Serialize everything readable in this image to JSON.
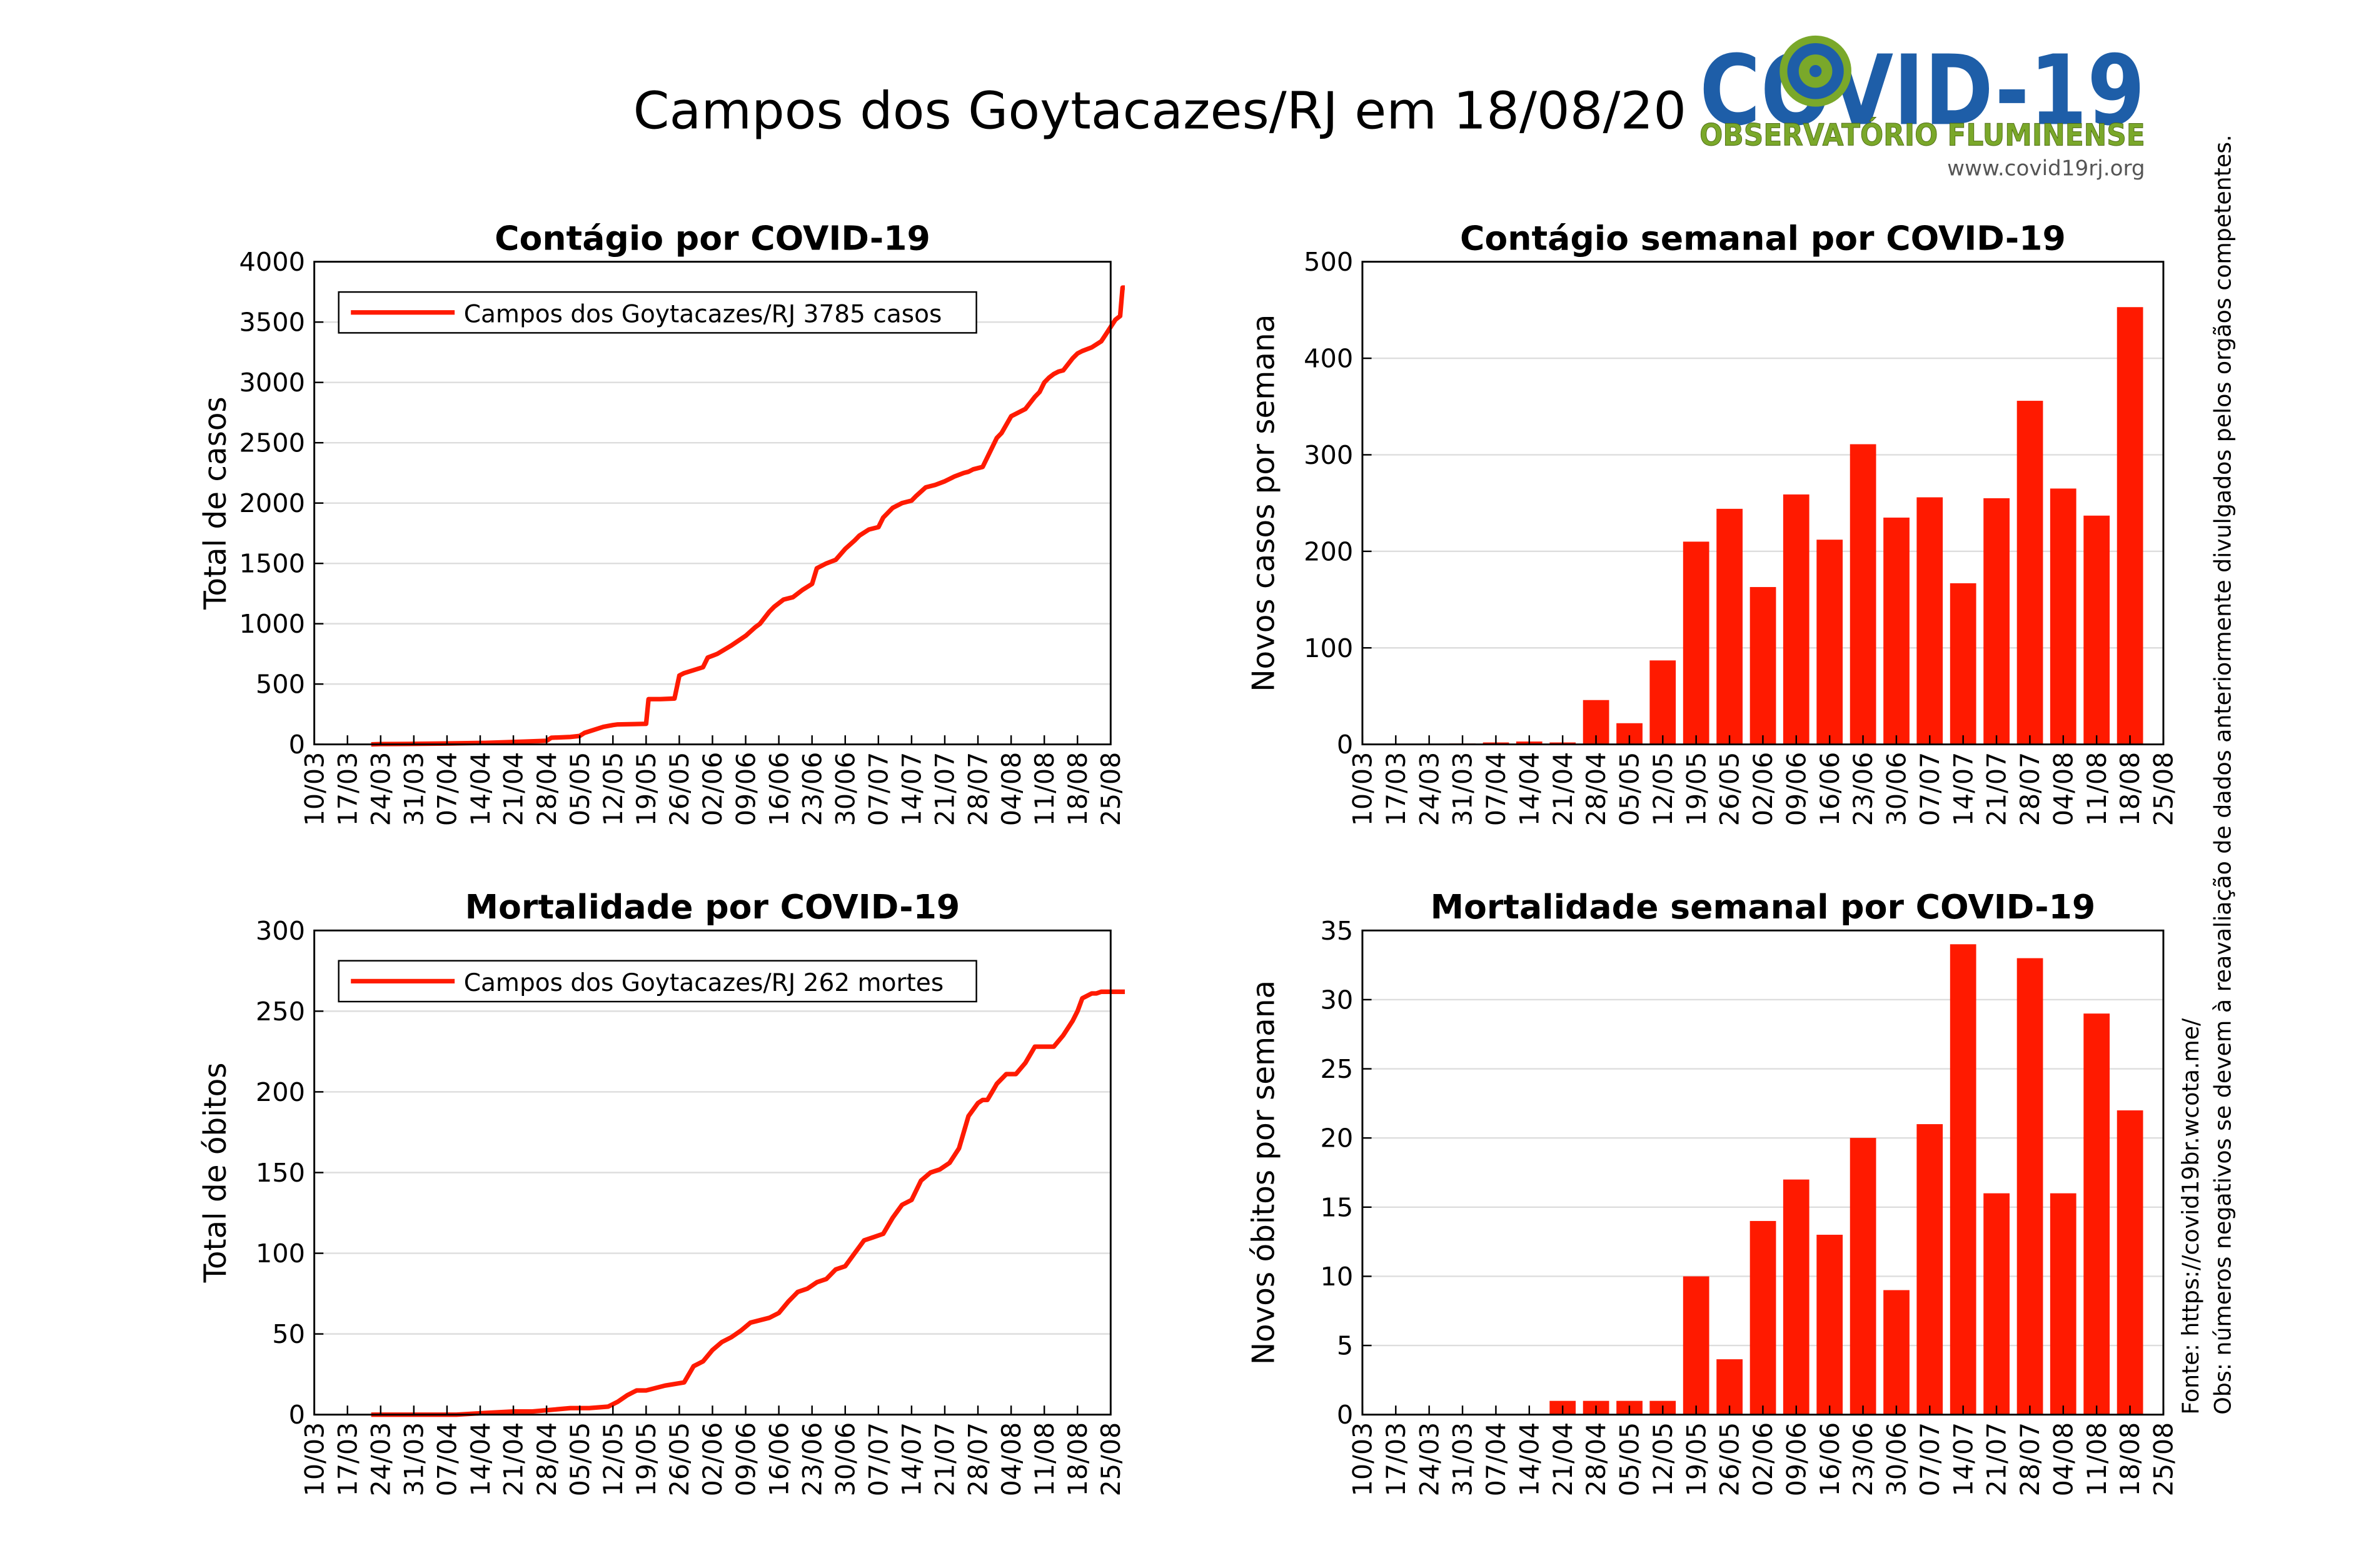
{
  "page": {
    "title": "Campos dos Goytacazes/RJ em 18/08/20"
  },
  "logo": {
    "text_main": "COVID-19",
    "subtitle": "OBSERVATÓRIO FLUMINENSE",
    "url": "www.covid19rj.org",
    "colors": {
      "blue": "#1e5ea8",
      "green": "#7aa82a",
      "gray": "#555555"
    }
  },
  "side_notes": {
    "obs": "Obs: números negativos se devem à reavaliação de dados anteriormente divulgados pelos orgãos competentes.",
    "source": "Fonte: https://covid19br.wcota.me/"
  },
  "colors": {
    "series": "#ff1a00",
    "axis": "#000000",
    "grid": "#dddddd"
  },
  "chart_data": [
    {
      "id": "cases_cum",
      "type": "line",
      "title": "Contágio por COVID-19",
      "xlabel": "",
      "ylabel": "Total de casos",
      "ylim": [
        0,
        4000
      ],
      "yticks": [
        0,
        500,
        1000,
        1500,
        2000,
        2500,
        3000,
        3500,
        4000
      ],
      "xticks": [
        "10/03",
        "17/03",
        "24/03",
        "31/03",
        "07/04",
        "14/04",
        "21/04",
        "28/04",
        "05/05",
        "12/05",
        "19/05",
        "26/05",
        "02/06",
        "09/06",
        "16/06",
        "23/06",
        "30/06",
        "07/07",
        "14/07",
        "21/07",
        "28/07",
        "04/08",
        "11/08",
        "18/08",
        "25/08"
      ],
      "grid": true,
      "legend": {
        "position": "top-left",
        "label": "Campos dos Goytacazes/RJ  3785 casos"
      },
      "series": [
        {
          "name": "Campos dos Goytacazes/RJ  3785 casos",
          "x": [
            12,
            14,
            20,
            28,
            36,
            44,
            49,
            50,
            54,
            56,
            57,
            61,
            63,
            64,
            70,
            70.5,
            73,
            76,
            77,
            78,
            82,
            83,
            85,
            88,
            91,
            93,
            94,
            96,
            97,
            99,
            101,
            103,
            105,
            106,
            108,
            110,
            112,
            114,
            115,
            117,
            119,
            120,
            122,
            124,
            126,
            127,
            129,
            131,
            133,
            135,
            137,
            138,
            139,
            141,
            143,
            144,
            145,
            147,
            149,
            150,
            151,
            152,
            153,
            154,
            155,
            156,
            157,
            158,
            160,
            161,
            162,
            163,
            164,
            166,
            167,
            168,
            169,
            170,
            170.5,
            171
          ],
          "y": [
            0,
            2,
            4,
            8,
            12,
            22,
            30,
            55,
            62,
            70,
            95,
            145,
            160,
            165,
            170,
            375,
            375,
            380,
            570,
            590,
            640,
            720,
            750,
            820,
            900,
            970,
            1000,
            1100,
            1140,
            1200,
            1220,
            1280,
            1330,
            1460,
            1500,
            1530,
            1620,
            1690,
            1730,
            1780,
            1800,
            1880,
            1960,
            2000,
            2020,
            2060,
            2130,
            2150,
            2180,
            2220,
            2250,
            2260,
            2280,
            2300,
            2460,
            2540,
            2580,
            2720,
            2760,
            2780,
            2830,
            2880,
            2920,
            3000,
            3040,
            3070,
            3090,
            3100,
            3200,
            3240,
            3260,
            3275,
            3290,
            3340,
            3400,
            3460,
            3520,
            3550,
            3785,
            3785
          ]
        }
      ]
    },
    {
      "id": "cases_weekly",
      "type": "bar",
      "title": "Contágio semanal por COVID-19",
      "xlabel": "",
      "ylabel": "Novos casos por semana",
      "ylim": [
        0,
        500
      ],
      "yticks": [
        0,
        100,
        200,
        300,
        400,
        500
      ],
      "xticks": [
        "10/03",
        "17/03",
        "24/03",
        "31/03",
        "07/04",
        "14/04",
        "21/04",
        "28/04",
        "05/05",
        "12/05",
        "19/05",
        "26/05",
        "02/06",
        "09/06",
        "16/06",
        "23/06",
        "30/06",
        "07/07",
        "14/07",
        "21/07",
        "28/07",
        "04/08",
        "11/08",
        "18/08",
        "25/08"
      ],
      "grid": true,
      "categories": [
        "17/03",
        "24/03",
        "31/03",
        "07/04",
        "14/04",
        "21/04",
        "28/04",
        "05/05",
        "12/05",
        "19/05",
        "26/05",
        "02/06",
        "09/06",
        "16/06",
        "23/06",
        "30/06",
        "07/07",
        "14/07",
        "21/07",
        "28/07",
        "04/08",
        "11/08",
        "18/08"
      ],
      "values": [
        0,
        0,
        1,
        2,
        3,
        2,
        46,
        22,
        87,
        210,
        244,
        163,
        259,
        212,
        311,
        235,
        256,
        167,
        255,
        356,
        265,
        237,
        453
      ]
    },
    {
      "id": "deaths_cum",
      "type": "line",
      "title": "Mortalidade por COVID-19",
      "xlabel": "",
      "ylabel": "Total de óbitos",
      "ylim": [
        0,
        300
      ],
      "yticks": [
        0,
        50,
        100,
        150,
        200,
        250,
        300
      ],
      "xticks": [
        "10/03",
        "17/03",
        "24/03",
        "31/03",
        "07/04",
        "14/04",
        "21/04",
        "28/04",
        "05/05",
        "12/05",
        "19/05",
        "26/05",
        "02/06",
        "09/06",
        "16/06",
        "23/06",
        "30/06",
        "07/07",
        "14/07",
        "21/07",
        "28/07",
        "04/08",
        "11/08",
        "18/08",
        "25/08"
      ],
      "grid": true,
      "legend": {
        "position": "top-left",
        "label": "Campos dos Goytacazes/RJ  262 mortes"
      },
      "series": [
        {
          "name": "Campos dos Goytacazes/RJ  262 mortes",
          "x": [
            12,
            30,
            36,
            42,
            46,
            50,
            54,
            58,
            62,
            64,
            66,
            68,
            70,
            74,
            78,
            80,
            82,
            84,
            86,
            88,
            90,
            92,
            96,
            98,
            100,
            102,
            104,
            106,
            108,
            110,
            112,
            114,
            116,
            118,
            120,
            122,
            124,
            126,
            128,
            130,
            132,
            134,
            136,
            138,
            140,
            141,
            142,
            143,
            144,
            146,
            148,
            150,
            152,
            154,
            156,
            158,
            160,
            161,
            162,
            164,
            165,
            166,
            167,
            169,
            171
          ],
          "y": [
            0,
            0,
            1,
            2,
            2,
            3,
            4,
            4,
            5,
            8,
            12,
            15,
            15,
            18,
            20,
            30,
            33,
            40,
            45,
            48,
            52,
            57,
            60,
            63,
            70,
            76,
            78,
            82,
            84,
            90,
            92,
            100,
            108,
            110,
            112,
            122,
            130,
            133,
            145,
            150,
            152,
            156,
            165,
            185,
            193,
            195,
            195,
            200,
            205,
            211,
            211,
            218,
            228,
            228,
            228,
            235,
            244,
            250,
            258,
            261,
            261,
            262,
            262,
            262,
            262
          ]
        }
      ]
    },
    {
      "id": "deaths_weekly",
      "type": "bar",
      "title": "Mortalidade semanal por COVID-19",
      "xlabel": "",
      "ylabel": "Novos óbitos por semana",
      "ylim": [
        0,
        35
      ],
      "yticks": [
        0,
        5,
        10,
        15,
        20,
        25,
        30,
        35
      ],
      "xticks": [
        "10/03",
        "17/03",
        "24/03",
        "31/03",
        "07/04",
        "14/04",
        "21/04",
        "28/04",
        "05/05",
        "12/05",
        "19/05",
        "26/05",
        "02/06",
        "09/06",
        "16/06",
        "23/06",
        "30/06",
        "07/07",
        "14/07",
        "21/07",
        "28/07",
        "04/08",
        "11/08",
        "18/08",
        "25/08"
      ],
      "grid": true,
      "categories": [
        "17/03",
        "24/03",
        "31/03",
        "07/04",
        "14/04",
        "21/04",
        "28/04",
        "05/05",
        "12/05",
        "19/05",
        "26/05",
        "02/06",
        "09/06",
        "16/06",
        "23/06",
        "30/06",
        "07/07",
        "14/07",
        "21/07",
        "28/07",
        "04/08",
        "11/08",
        "18/08"
      ],
      "values": [
        0,
        0,
        0,
        0,
        0,
        1,
        1,
        1,
        1,
        10,
        4,
        14,
        17,
        13,
        20,
        9,
        21,
        34,
        16,
        33,
        16,
        29,
        22
      ]
    }
  ]
}
